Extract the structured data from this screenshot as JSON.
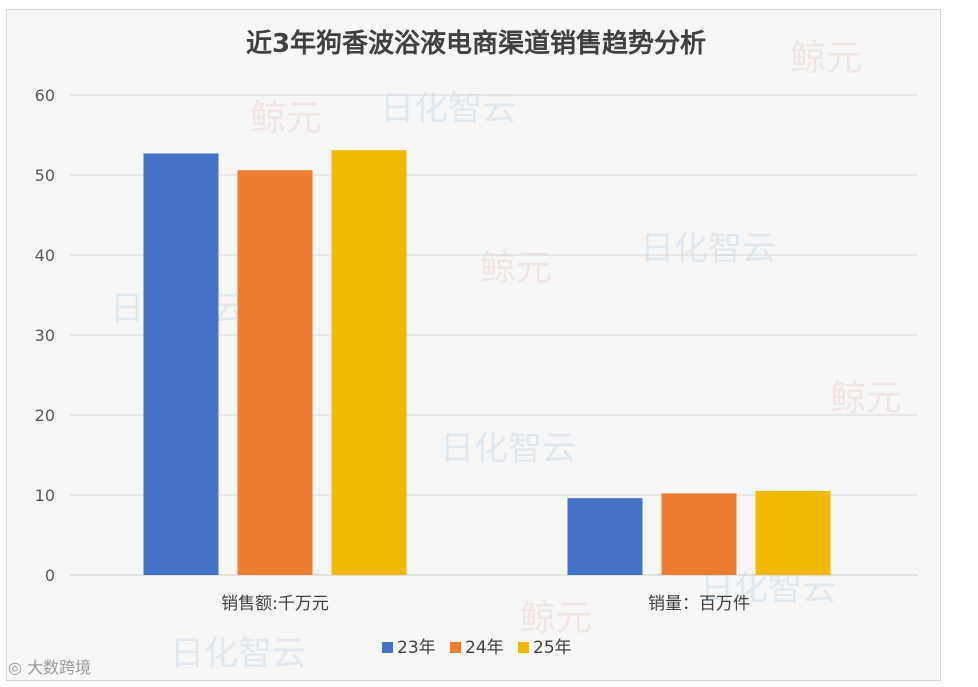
{
  "chart_data": {
    "type": "bar",
    "title": "近3年狗香波浴液电商渠道销售趋势分析",
    "categories": [
      "销售额:千万元",
      "销量：百万件"
    ],
    "series": [
      {
        "name": "23年",
        "color": "#4472C4",
        "values": [
          52.7,
          9.6
        ]
      },
      {
        "name": "24年",
        "color": "#ED7D31",
        "values": [
          50.6,
          10.2
        ]
      },
      {
        "name": "25年",
        "color": "#F0B800",
        "values": [
          53.1,
          10.5
        ]
      }
    ],
    "ylim": [
      0,
      60
    ],
    "yticks": [
      0,
      10,
      20,
      30,
      40,
      50,
      60
    ],
    "grid": true,
    "legend_position": "bottom"
  },
  "watermarks": {
    "brand_a": "鲸元",
    "brand_b": "日化智云",
    "footer": "大数跨境"
  }
}
